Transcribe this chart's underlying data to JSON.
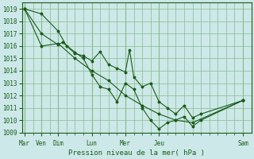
{
  "background_color": "#cce8e8",
  "grid_color": "#88bb88",
  "line_color": "#1a5c1a",
  "marker_color": "#1a5c1a",
  "xlabel": "Pression niveau de la mer( hPa )",
  "ylim": [
    1009,
    1019.5
  ],
  "yticks": [
    1009,
    1010,
    1011,
    1012,
    1013,
    1014,
    1015,
    1016,
    1017,
    1018,
    1019
  ],
  "day_positions": [
    0,
    12,
    24,
    48,
    72,
    96,
    156
  ],
  "day_labels": [
    "Mar",
    "Ven",
    "Dim",
    "Lun",
    "Mer",
    "Jeu",
    "Sam"
  ],
  "xlim": [
    -2,
    162
  ],
  "series": [
    {
      "x": [
        0,
        12,
        24,
        30,
        36,
        42,
        48,
        54,
        60,
        66,
        72,
        75,
        78,
        84,
        90,
        96,
        102,
        108,
        114,
        120,
        126,
        156
      ],
      "y": [
        1019.0,
        1018.6,
        1017.2,
        1016.0,
        1015.4,
        1015.2,
        1014.8,
        1015.55,
        1014.5,
        1014.2,
        1013.9,
        1015.7,
        1013.5,
        1012.7,
        1013.0,
        1011.5,
        1011.0,
        1010.5,
        1011.2,
        1010.2,
        1010.5,
        1011.6
      ]
    },
    {
      "x": [
        0,
        12,
        24,
        27,
        36,
        42,
        48,
        54,
        60,
        66,
        72,
        78,
        84,
        90,
        96,
        102,
        108,
        114,
        120,
        126,
        156
      ],
      "y": [
        1019.0,
        1017.0,
        1016.1,
        1016.3,
        1015.5,
        1015.0,
        1013.7,
        1012.7,
        1012.5,
        1011.5,
        1013.0,
        1012.5,
        1011.0,
        1010.0,
        1009.3,
        1009.8,
        1010.0,
        1010.3,
        1009.5,
        1010.0,
        1011.6
      ]
    },
    {
      "x": [
        0,
        12,
        24,
        36,
        48,
        60,
        72,
        84,
        96,
        108,
        120,
        156
      ],
      "y": [
        1019.0,
        1016.0,
        1016.2,
        1015.0,
        1014.0,
        1013.2,
        1012.0,
        1011.2,
        1010.5,
        1010.0,
        1009.8,
        1011.6
      ]
    }
  ]
}
